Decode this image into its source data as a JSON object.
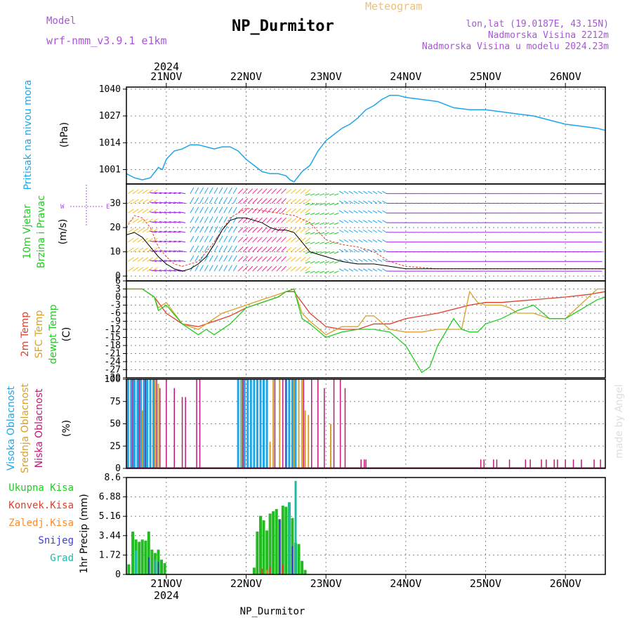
{
  "header": {
    "model_label": "Model",
    "model_name": "wrf-nmm_v3.9.1  e1km",
    "meteogram_label": "Meteogram",
    "station_title": "NP_Durmitor",
    "coords": "lon,lat (19.0187E, 43.15N)",
    "elevation": "Nadmorska Visina 2212m",
    "model_elevation": "Nadmorska Visina u modelu 2024.23m"
  },
  "footer": {
    "station": "NP_Durmitor",
    "signature": "made by Angel"
  },
  "time_axis": {
    "labels": [
      "21NOV",
      "22NOV",
      "23NOV",
      "24NOV",
      "25NOV",
      "26NOV"
    ],
    "year_top": "2024",
    "year_bottom": "2024"
  },
  "colors": {
    "pressure": "#1ea7e8",
    "temp2m": "#e0402a",
    "sfc": "#d9a12a",
    "dew": "#22cc22",
    "wind_speed": "#000000",
    "gust": "#e0402a",
    "cloud_high": "#1ea7e8",
    "cloud_mid": "#d9a12a",
    "cloud_low": "#c0187a",
    "precip_total": "#22bb22",
    "precip_conv": "#e0402a",
    "precip_frozen": "#ff8a2a",
    "snow": "#4040d0",
    "graupel": "#20b8a8"
  },
  "panels": {
    "pressure": {
      "label1": "Pritisak na nivou mora",
      "label2": "(hPa)"
    },
    "wind": {
      "label1": "10m Vjetar",
      "label2": "Brzina i Pravac",
      "label3": "(m/s)",
      "compass_w": "W",
      "compass_e": "E"
    },
    "temp": {
      "label1": "2m Temp",
      "label2": "SFC Temp",
      "label3": "dewpt Temp",
      "label4": "(C)"
    },
    "cloud": {
      "label1": "Visoka Oblacnost",
      "label2": "Srednja Oblacnost",
      "label3": "Niska Oblacnost",
      "label4": "(%)"
    },
    "precip": {
      "legend": [
        "Ukupna Kisa",
        "Konvek.Kisa",
        "Zaledj.Kisa",
        "Snijeg",
        "Grad"
      ],
      "axis_label": "1hr Precip (mm)"
    }
  },
  "chart_data": [
    {
      "type": "line",
      "title": "",
      "ylabel": "(hPa)",
      "ylim": [
        994,
        1041
      ],
      "yticks": [
        1001,
        1014,
        1027,
        1040
      ],
      "x_unit": "days from 2024-11-20 00UTC",
      "series": [
        {
          "x": [
            0.5,
            0.6,
            0.7,
            0.8,
            0.9,
            0.95,
            1.0,
            1.05,
            1.1,
            1.2,
            1.3,
            1.4,
            1.5,
            1.6,
            1.7,
            1.8,
            1.9,
            2.0,
            2.1,
            2.2,
            2.3,
            2.4,
            2.5,
            2.55,
            2.6,
            2.7,
            2.8,
            2.9,
            3.0,
            3.1,
            3.2,
            3.3,
            3.4,
            3.5,
            3.6,
            3.7,
            3.8,
            3.9,
            4.0,
            4.2,
            4.4,
            4.6,
            4.8,
            5.0,
            5.2,
            5.4,
            5.6,
            5.8,
            6.0,
            6.2,
            6.4,
            6.5
          ],
          "y": [
            999,
            997,
            996,
            997,
            1002,
            1001,
            1006,
            1008,
            1010,
            1011,
            1013,
            1013,
            1012,
            1011,
            1012,
            1012,
            1010,
            1006,
            1003,
            1000,
            999,
            999,
            998,
            996,
            995,
            1000,
            1003,
            1010,
            1015,
            1018,
            1021,
            1023,
            1026,
            1030,
            1032,
            1035,
            1037,
            1037,
            1036,
            1035,
            1034,
            1031,
            1030,
            1030,
            1029,
            1028,
            1027,
            1025,
            1023,
            1022,
            1021,
            1020
          ]
        }
      ]
    },
    {
      "type": "line",
      "title": "",
      "ylabel": "(m/s)",
      "ylim": [
        -2,
        38
      ],
      "yticks": [
        0,
        10,
        20,
        30
      ],
      "series": [
        {
          "x": [
            0.5,
            0.6,
            0.7,
            0.8,
            0.9,
            1.0,
            1.1,
            1.2,
            1.3,
            1.4,
            1.5,
            1.6,
            1.7,
            1.8,
            1.9,
            2.0,
            2.1,
            2.2,
            2.3,
            2.4,
            2.5,
            2.6,
            2.7,
            2.8,
            2.9,
            3.0,
            3.2,
            3.4,
            3.6,
            3.8,
            4.0,
            4.4,
            4.8,
            5.2,
            5.6,
            6.0,
            6.5
          ],
          "y": [
            17,
            18,
            16,
            12,
            8,
            5,
            3,
            2,
            3,
            5,
            8,
            13,
            19,
            23,
            24,
            24,
            23,
            22,
            20,
            19,
            19,
            18,
            14,
            10,
            9,
            8,
            6,
            5,
            5,
            4,
            3,
            3,
            3,
            3,
            3,
            3,
            3
          ]
        },
        {
          "x": [
            0.5,
            0.6,
            0.7,
            0.8,
            0.9,
            1.0,
            1.1,
            1.2,
            1.4,
            1.6,
            1.8,
            2.0,
            2.2,
            2.4,
            2.6,
            2.8,
            3.0,
            3.2,
            3.4,
            3.6,
            3.8,
            4.0,
            4.4,
            4.8,
            5.2,
            5.6,
            6.0,
            6.5
          ],
          "y": [
            20,
            25,
            24,
            20,
            12,
            8,
            5,
            4,
            6,
            14,
            24,
            28,
            27,
            26,
            25,
            22,
            15,
            13,
            12,
            10,
            6,
            4,
            3,
            3,
            3,
            3,
            3,
            3
          ]
        }
      ]
    },
    {
      "type": "line",
      "title": "",
      "ylabel": "(C)",
      "ylim": [
        -30,
        6
      ],
      "yticks": [
        6,
        3,
        0,
        -3,
        -6,
        -9,
        -12,
        -15,
        -18,
        -21,
        -24,
        -27,
        -30
      ],
      "series": [
        {
          "x": [
            0.5,
            0.7,
            0.85,
            1.0,
            1.2,
            1.4,
            1.6,
            1.8,
            2.0,
            2.2,
            2.4,
            2.5,
            2.6,
            2.7,
            2.8,
            3.0,
            3.2,
            3.4,
            3.6,
            3.8,
            4.0,
            4.4,
            4.8,
            5.0,
            5.2,
            5.6,
            6.0,
            6.3,
            6.5
          ],
          "y": [
            3,
            3,
            0,
            -6,
            -10,
            -11,
            -9,
            -7,
            -4,
            -2,
            0,
            2,
            2,
            -2,
            -6,
            -11,
            -12,
            -12,
            -10,
            -10,
            -8,
            -6,
            -3,
            -2,
            -2,
            -1,
            0,
            1,
            2
          ]
        },
        {
          "x": [
            0.5,
            0.7,
            0.85,
            0.9,
            1.0,
            1.2,
            1.4,
            1.6,
            1.7,
            1.8,
            2.0,
            2.2,
            2.4,
            2.5,
            2.6,
            2.7,
            2.8,
            3.0,
            3.2,
            3.4,
            3.5,
            3.6,
            3.8,
            4.0,
            4.2,
            4.4,
            4.6,
            4.7,
            4.8,
            4.9,
            5.0,
            5.2,
            5.3,
            5.4,
            5.6,
            5.7,
            5.8,
            6.0,
            6.4,
            6.5
          ],
          "y": [
            3,
            3,
            0,
            -4,
            -2,
            -10,
            -12,
            -8,
            -6,
            -5,
            -3,
            -1,
            1,
            2,
            3,
            -6,
            -9,
            -14,
            -11,
            -11,
            -7,
            -7,
            -12,
            -13,
            -13,
            -12,
            -12,
            -12,
            2,
            -2,
            -3,
            -3,
            -4,
            -6,
            -6,
            -7,
            -8,
            -8,
            3,
            3
          ]
        },
        {
          "x": [
            0.5,
            0.7,
            0.85,
            0.9,
            1.0,
            1.2,
            1.4,
            1.5,
            1.6,
            1.8,
            2.0,
            2.2,
            2.4,
            2.5,
            2.6,
            2.7,
            2.8,
            3.0,
            3.2,
            3.4,
            3.6,
            3.8,
            4.0,
            4.1,
            4.2,
            4.3,
            4.4,
            4.6,
            4.7,
            4.8,
            4.9,
            5.0,
            5.2,
            5.4,
            5.6,
            5.8,
            6.0,
            6.4,
            6.5
          ],
          "y": [
            3,
            3,
            0,
            -5,
            -3,
            -10,
            -14,
            -12,
            -14,
            -10,
            -4,
            -2,
            0,
            2,
            3,
            -8,
            -10,
            -15,
            -13,
            -12,
            -12,
            -13,
            -18,
            -23,
            -28,
            -26,
            -18,
            -8,
            -12,
            -13,
            -13,
            -10,
            -8,
            -5,
            -3,
            -8,
            -8,
            -1,
            0
          ]
        }
      ]
    },
    {
      "type": "bar",
      "title": "",
      "ylabel": "(%)",
      "ylim": [
        0,
        100
      ],
      "yticks": [
        0,
        25,
        50,
        75,
        100
      ],
      "series": [
        {
          "name": "Visoka Oblacnost",
          "x": [
            0.52,
            0.56,
            0.6,
            0.64,
            0.68,
            0.72,
            0.76,
            0.8,
            0.84,
            1.9,
            1.94,
            1.98,
            2.02,
            2.06,
            2.1,
            2.14,
            2.18,
            2.22,
            2.26,
            2.5,
            2.54,
            2.58,
            2.62
          ],
          "values": [
            100,
            100,
            100,
            100,
            100,
            100,
            100,
            100,
            100,
            100,
            100,
            100,
            100,
            100,
            100,
            100,
            100,
            100,
            100,
            100,
            100,
            100,
            100
          ]
        },
        {
          "name": "Srednja Oblacnost",
          "x": [
            0.7,
            0.86,
            0.9,
            1.94,
            2.3,
            2.34,
            2.42,
            2.6,
            2.66,
            2.7,
            2.74,
            2.78,
            3.06
          ],
          "values": [
            65,
            100,
            95,
            100,
            30,
            100,
            100,
            100,
            100,
            100,
            65,
            60,
            50
          ]
        },
        {
          "name": "Niska Oblacnost",
          "x": [
            0.58,
            0.66,
            0.74,
            0.88,
            0.92,
            1.0,
            1.1,
            1.2,
            1.24,
            1.38,
            1.42,
            1.96,
            2.36,
            2.46,
            2.5,
            2.72,
            2.82,
            2.9,
            2.98,
            3.1,
            3.18,
            3.24,
            3.44,
            3.48,
            3.5,
            4.94,
            4.98,
            5.1,
            5.14,
            5.3,
            5.5,
            5.56,
            5.7,
            5.76,
            5.86,
            5.9,
            6.0,
            6.1,
            6.2,
            6.36,
            6.44
          ],
          "values": [
            100,
            100,
            100,
            100,
            90,
            100,
            90,
            80,
            80,
            100,
            100,
            100,
            100,
            100,
            100,
            100,
            100,
            100,
            90,
            100,
            100,
            90,
            10,
            10,
            10,
            10,
            10,
            10,
            10,
            10,
            10,
            10,
            10,
            10,
            10,
            10,
            10,
            10,
            10,
            10,
            10
          ]
        }
      ]
    },
    {
      "type": "bar",
      "title": "",
      "ylabel": "1hr Precip (mm)",
      "ylim": [
        0,
        8.6
      ],
      "yticks": [
        0,
        1.72,
        3.44,
        5.16,
        6.88,
        8.6
      ],
      "series": [
        {
          "name": "Ukupna Kisa",
          "x": [
            0.53,
            0.58,
            0.62,
            0.66,
            0.7,
            0.74,
            0.78,
            0.82,
            0.86,
            0.9,
            0.94,
            0.98,
            2.1,
            2.14,
            2.18,
            2.22,
            2.26,
            2.3,
            2.34,
            2.38,
            2.42,
            2.46,
            2.5,
            2.54,
            2.58,
            2.62,
            2.66,
            2.7,
            2.74
          ],
          "values": [
            0.9,
            3.8,
            3.1,
            2.9,
            3.1,
            3.0,
            3.8,
            2.2,
            1.9,
            2.2,
            1.3,
            1.0,
            0.6,
            3.8,
            5.2,
            4.8,
            3.9,
            5.4,
            5.6,
            5.8,
            4.9,
            6.1,
            6.0,
            6.4,
            5.0,
            2.8,
            2.7,
            1.2,
            0.4
          ]
        },
        {
          "name": "Konvek.Kisa",
          "x": [
            2.2,
            2.3,
            2.46
          ],
          "values": [
            0.5,
            0.7,
            0.9
          ]
        },
        {
          "name": "Zaledj.Kisa",
          "x": [
            2.26
          ],
          "values": [
            0.4
          ]
        },
        {
          "name": "Snijeg",
          "x": [
            0.78,
            0.9,
            2.42,
            2.58
          ],
          "values": [
            1.5,
            1.1,
            4.9,
            2.5
          ]
        },
        {
          "name": "Grad",
          "x": [
            0.62,
            0.86,
            2.54,
            2.62
          ],
          "values": [
            2.1,
            1.3,
            6.4,
            8.3
          ]
        }
      ]
    }
  ]
}
